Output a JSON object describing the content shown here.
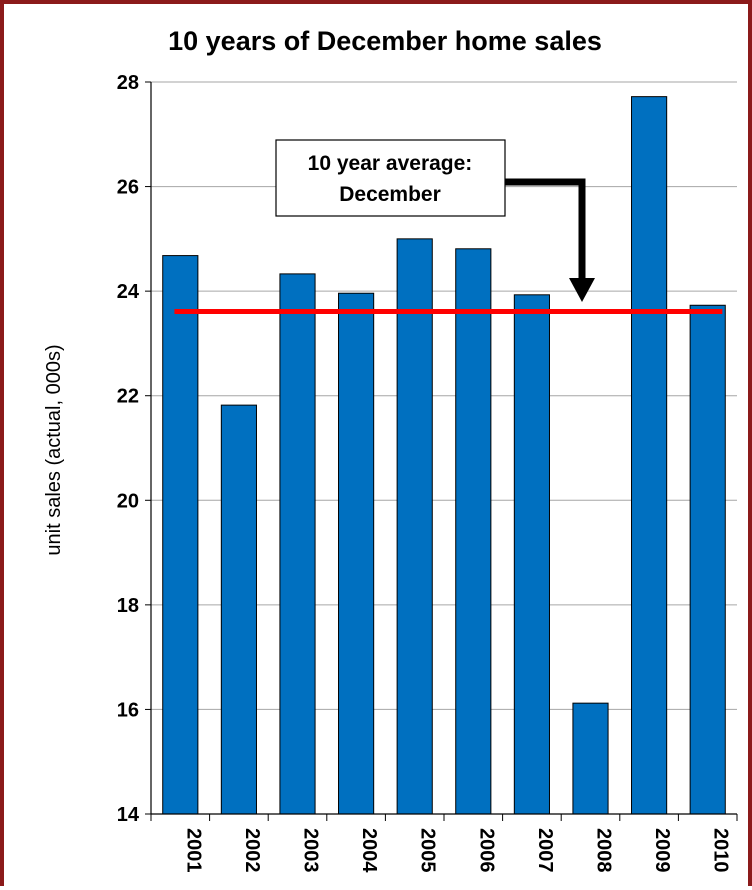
{
  "chart_data": {
    "type": "bar",
    "title": "10 years of December home sales",
    "xlabel": "",
    "ylabel": "unit sales (actual, 000s)",
    "categories": [
      "2001",
      "2002",
      "2003",
      "2004",
      "2005",
      "2006",
      "2007",
      "2008",
      "2009",
      "2010"
    ],
    "values": [
      24.68,
      21.82,
      24.33,
      23.96,
      25.0,
      24.81,
      23.93,
      16.12,
      27.72,
      23.73
    ],
    "ylim": [
      14,
      28
    ],
    "yticks": [
      "14",
      "16",
      "18",
      "20",
      "22",
      "24",
      "26",
      "28"
    ],
    "grid": true,
    "bar_color": "#0070c0",
    "reference_line": {
      "value": 23.61,
      "color": "#ff0000"
    },
    "annotation": {
      "line1": "10 year average:",
      "line2": "December"
    }
  },
  "frame_color": "#8b1a1a"
}
